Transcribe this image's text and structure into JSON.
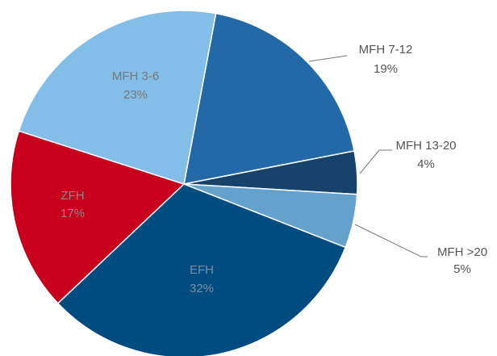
{
  "chart_data": {
    "type": "pie",
    "categories": [
      "MFH 7-12",
      "MFH 13-20",
      "MFH >20",
      "EFH",
      "ZFH",
      "MFH 3-6"
    ],
    "values": [
      19,
      4,
      5,
      32,
      17,
      23
    ],
    "value_labels": [
      "19%",
      "4%",
      "5%",
      "32%",
      "17%",
      "23%"
    ],
    "colors": [
      "#2369a8",
      "#17426b",
      "#64a2cd",
      "#004b80",
      "#c8001e",
      "#82bee7"
    ]
  }
}
